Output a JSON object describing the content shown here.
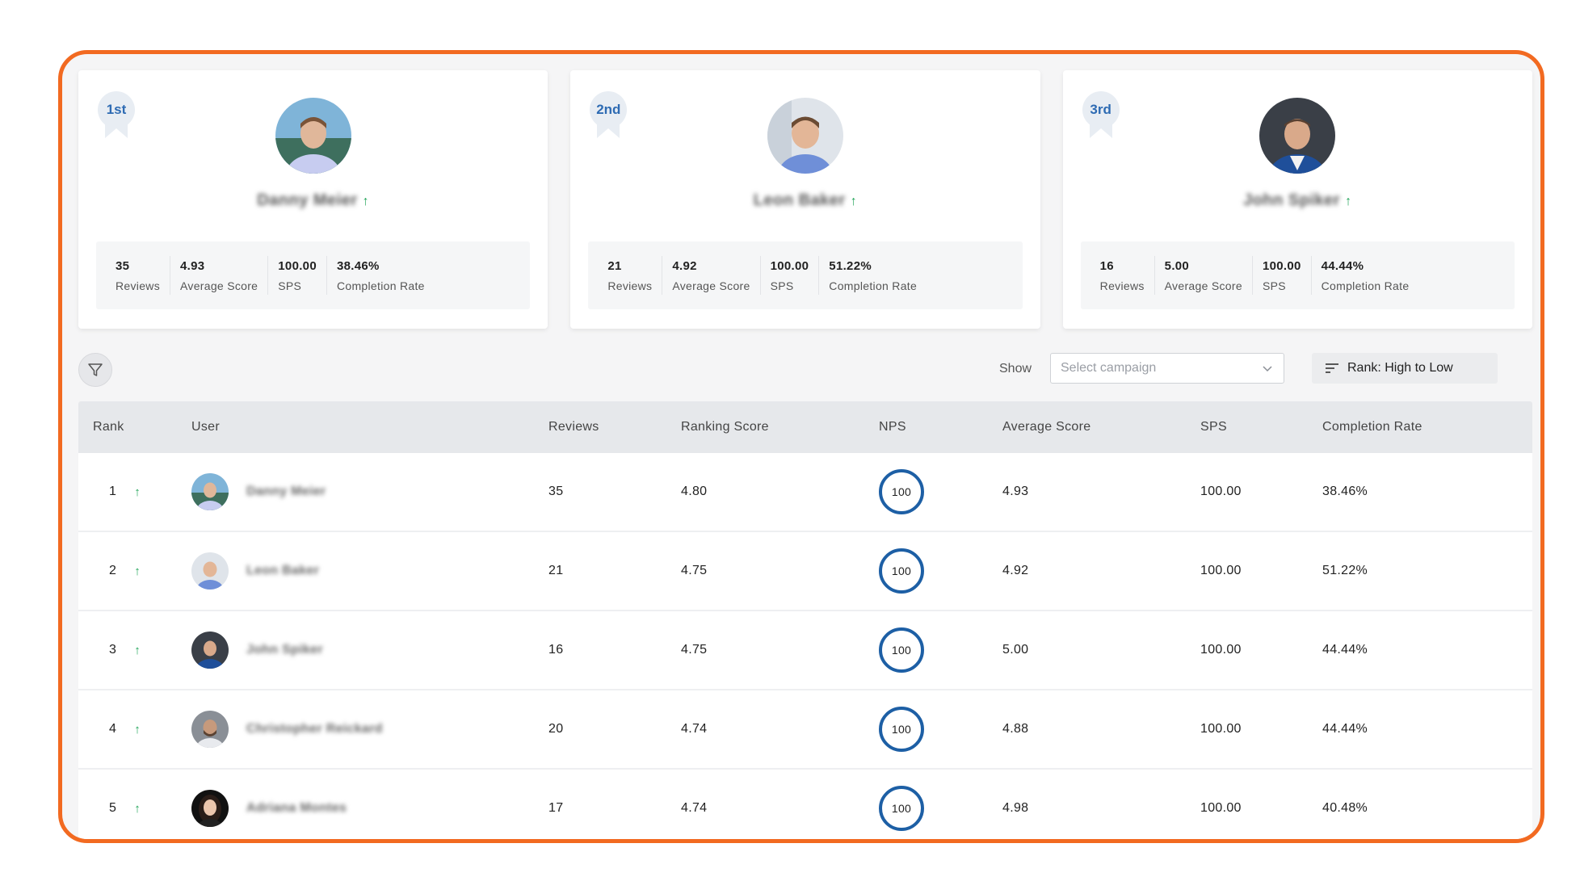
{
  "podium": [
    {
      "place": "1st",
      "name": "Danny Meier",
      "trend_icon": "arrow-up-icon",
      "stats": [
        {
          "value": "35",
          "label": "Reviews"
        },
        {
          "value": "4.93",
          "label": "Average Score"
        },
        {
          "value": "100.00",
          "label": "SPS"
        },
        {
          "value": "38.46%",
          "label": "Completion Rate"
        }
      ]
    },
    {
      "place": "2nd",
      "name": "Leon Baker",
      "trend_icon": "arrow-up-icon",
      "stats": [
        {
          "value": "21",
          "label": "Reviews"
        },
        {
          "value": "4.92",
          "label": "Average Score"
        },
        {
          "value": "100.00",
          "label": "SPS"
        },
        {
          "value": "51.22%",
          "label": "Completion Rate"
        }
      ]
    },
    {
      "place": "3rd",
      "name": "John Spiker",
      "trend_icon": "arrow-up-icon",
      "stats": [
        {
          "value": "16",
          "label": "Reviews"
        },
        {
          "value": "5.00",
          "label": "Average Score"
        },
        {
          "value": "100.00",
          "label": "SPS"
        },
        {
          "value": "44.44%",
          "label": "Completion Rate"
        }
      ]
    }
  ],
  "toolbar": {
    "filter_icon": "filter-icon",
    "show_label": "Show",
    "campaign_placeholder": "Select campaign",
    "sort_label": "Rank: High to Low"
  },
  "table": {
    "headers": {
      "rank": "Rank",
      "user": "User",
      "reviews": "Reviews",
      "ranking_score": "Ranking Score",
      "nps": "NPS",
      "average_score": "Average Score",
      "sps": "SPS",
      "completion_rate": "Completion Rate"
    },
    "rows": [
      {
        "rank": "1",
        "user": "Danny Meier",
        "reviews": "35",
        "ranking_score": "4.80",
        "nps": "100",
        "average_score": "4.93",
        "sps": "100.00",
        "completion_rate": "38.46%"
      },
      {
        "rank": "2",
        "user": "Leon Baker",
        "reviews": "21",
        "ranking_score": "4.75",
        "nps": "100",
        "average_score": "4.92",
        "sps": "100.00",
        "completion_rate": "51.22%"
      },
      {
        "rank": "3",
        "user": "John Spiker",
        "reviews": "16",
        "ranking_score": "4.75",
        "nps": "100",
        "average_score": "5.00",
        "sps": "100.00",
        "completion_rate": "44.44%"
      },
      {
        "rank": "4",
        "user": "Christopher Reickard",
        "reviews": "20",
        "ranking_score": "4.74",
        "nps": "100",
        "average_score": "4.88",
        "sps": "100.00",
        "completion_rate": "44.44%"
      },
      {
        "rank": "5",
        "user": "Adriana Montes",
        "reviews": "17",
        "ranking_score": "4.74",
        "nps": "100",
        "average_score": "4.98",
        "sps": "100.00",
        "completion_rate": "40.48%"
      }
    ]
  },
  "colors": {
    "frame_border": "#f26a21",
    "accent_blue": "#1d5fa5",
    "trend_green": "#23a55a"
  }
}
